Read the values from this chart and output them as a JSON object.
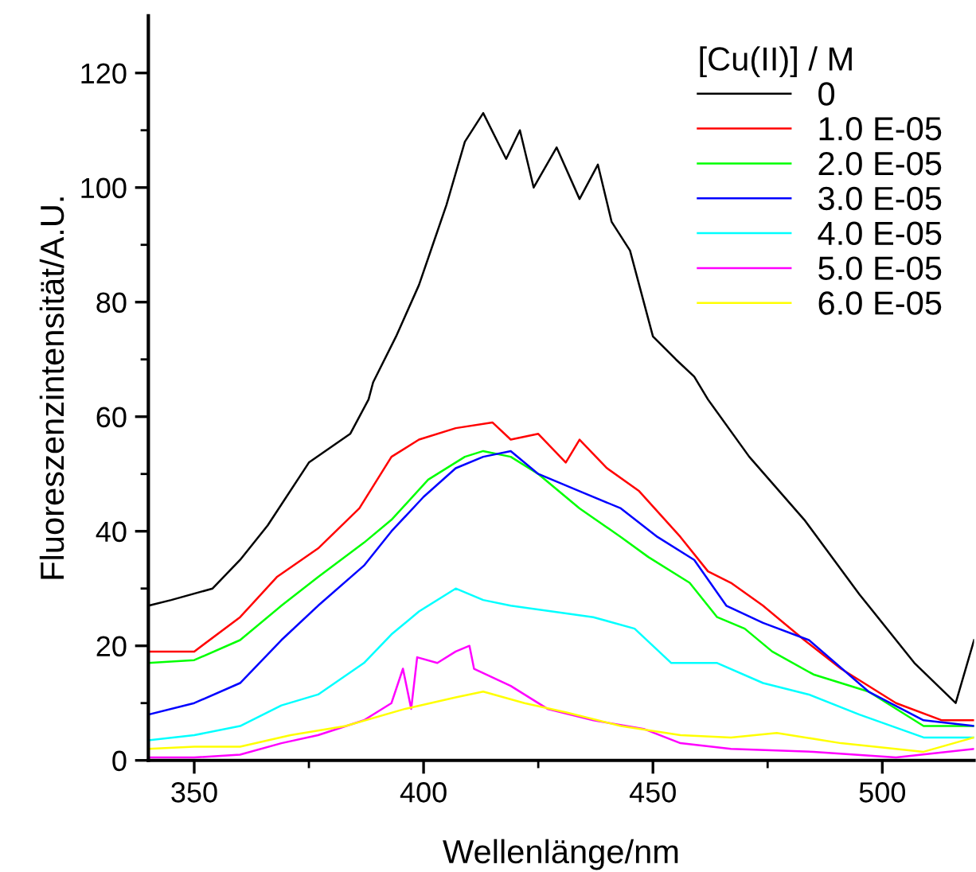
{
  "chart_data": {
    "type": "line",
    "xlabel": "Wellenlänge/nm",
    "ylabel": "Fluoreszenzintensität/A.U.",
    "legend_title": "[Cu(II)] / M",
    "legend": "top right",
    "grid": false,
    "marker": "none",
    "line_style": "solid",
    "xlim": [
      340,
      520
    ],
    "ylim": [
      0,
      130
    ],
    "xticks": [
      350,
      {
        "value": 375,
        "label": null
      },
      400,
      {
        "value": 425,
        "label": null
      },
      450,
      {
        "value": 475,
        "label": null
      },
      500
    ],
    "yticks": [
      0,
      {
        "value": 10,
        "label": null
      },
      20,
      {
        "value": 30,
        "label": null
      },
      40,
      {
        "value": 50,
        "label": null
      },
      60,
      {
        "value": 70,
        "label": null
      },
      80,
      {
        "value": 90,
        "label": null
      },
      100,
      {
        "value": 110,
        "label": null
      },
      120
    ],
    "series": [
      {
        "name": "0",
        "color": "#000000",
        "x": [
          340,
          345,
          354,
          360,
          366,
          375,
          384,
          388,
          389,
          394,
          399,
          402,
          405,
          409,
          413,
          418,
          421,
          424,
          429,
          434,
          438,
          441,
          445,
          450,
          455,
          459,
          462,
          471,
          483,
          495,
          507,
          516,
          520
        ],
        "values": [
          27,
          28,
          30,
          35,
          41,
          52,
          57,
          63,
          66,
          74,
          83,
          90,
          97,
          108,
          113,
          105,
          110,
          100,
          107,
          98,
          104,
          94,
          89,
          74,
          70,
          67,
          63,
          53,
          42,
          29,
          17,
          10,
          21
        ]
      },
      {
        "name": "1.0 E-05",
        "color": "#ff0000",
        "x": [
          340,
          350,
          360,
          368,
          377,
          386,
          393,
          399,
          407,
          415,
          419,
          425,
          431,
          434,
          440,
          447,
          456,
          462,
          467,
          474,
          483,
          491,
          503,
          513,
          520
        ],
        "values": [
          19,
          19,
          25,
          32,
          37,
          44,
          53,
          56,
          58,
          59,
          56,
          57,
          52,
          56,
          51,
          47,
          39,
          33,
          31,
          27,
          21,
          16,
          10,
          7,
          7
        ]
      },
      {
        "name": "2.0 E-05",
        "color": "#00ff00",
        "x": [
          340,
          350,
          360,
          369,
          377,
          387,
          393,
          401,
          409,
          413,
          419,
          425,
          434,
          443,
          449,
          458,
          464,
          470,
          476,
          485,
          497,
          509,
          520
        ],
        "values": [
          17,
          17.5,
          21,
          27,
          32,
          38,
          42,
          49,
          53,
          54,
          53,
          50,
          44,
          39,
          35.5,
          31,
          25,
          23,
          19,
          15,
          12,
          6,
          6
        ]
      },
      {
        "name": "3.0 E-05",
        "color": "#0000ff",
        "x": [
          340,
          350,
          360,
          369,
          377,
          387,
          393,
          400,
          407,
          413,
          419,
          425,
          434,
          443,
          451,
          459,
          466,
          474,
          484,
          497,
          509,
          520
        ],
        "values": [
          8,
          10,
          13.5,
          21,
          27,
          34,
          40,
          46,
          51,
          53,
          54,
          50,
          47,
          44,
          39,
          35,
          27,
          24,
          21,
          12,
          7,
          6
        ]
      },
      {
        "name": "4.0 E-05",
        "color": "#00ffff",
        "x": [
          340,
          350,
          360,
          369,
          377,
          387,
          393,
          399,
          407,
          413,
          419,
          428,
          437,
          446,
          454,
          464,
          474,
          484,
          495,
          509,
          520
        ],
        "values": [
          3.5,
          4.4,
          6,
          9.6,
          11.5,
          17,
          22,
          26,
          30,
          28,
          27,
          26,
          25,
          23,
          17,
          17,
          13.5,
          11.5,
          8,
          4,
          4
        ]
      },
      {
        "name": "5.0 E-05",
        "color": "#ff00ff",
        "x": [
          340,
          350,
          360,
          369,
          377,
          387,
          393,
          395.5,
          397.3,
          398.6,
          403,
          407,
          410,
          411,
          419,
          427,
          437,
          448,
          456,
          467,
          485,
          503,
          520
        ],
        "values": [
          0.5,
          0.5,
          1,
          3,
          4.4,
          7,
          10,
          16,
          9,
          18,
          17,
          19,
          20,
          16,
          13,
          9,
          7,
          5.5,
          3,
          2,
          1.5,
          0.5,
          2
        ]
      },
      {
        "name": "6.0 E-05",
        "color": "#ffff00",
        "x": [
          340,
          350,
          360,
          371,
          383,
          396,
          407,
          413,
          422,
          431,
          443,
          456,
          467,
          477,
          491,
          509,
          520
        ],
        "values": [
          2,
          2.4,
          2.4,
          4.4,
          6,
          9,
          11,
          12,
          10,
          8.4,
          6,
          4.4,
          4,
          4.8,
          3,
          1.5,
          4
        ]
      }
    ]
  }
}
